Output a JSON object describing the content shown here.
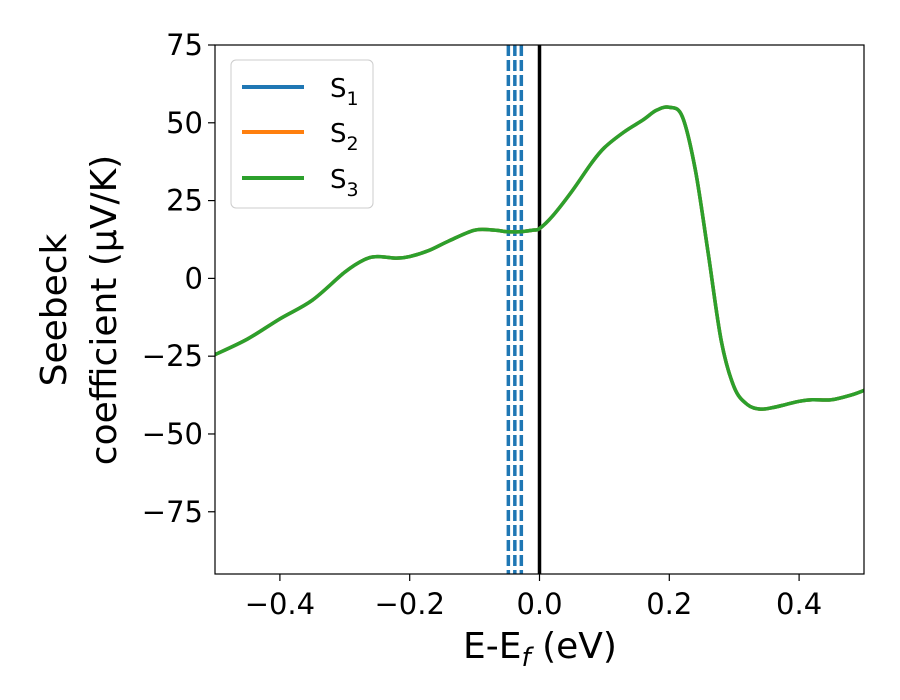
{
  "chart_data": {
    "type": "line",
    "title": "",
    "xlabel": {
      "main": "E-E",
      "sub": "f",
      "suffix": " (eV)"
    },
    "ylabel": {
      "line1": "Seebeck",
      "line2": "coefficient  (μV/K)"
    },
    "xlim": [
      -0.5,
      0.5
    ],
    "ylim": [
      -95,
      75
    ],
    "xticks": [
      -0.4,
      -0.2,
      0.0,
      0.2,
      0.4
    ],
    "xtick_labels": [
      "−0.4",
      "−0.2",
      "0.0",
      "0.2",
      "0.4"
    ],
    "yticks": [
      75,
      50,
      25,
      0,
      -25,
      -50,
      -75
    ],
    "ytick_labels": [
      "75",
      "50",
      "25",
      "0",
      "−25",
      "−50",
      "−75"
    ],
    "grid": false,
    "legend": {
      "position": "top-left",
      "entries": [
        {
          "main": "S",
          "sub": "1",
          "color": "#1f77b4"
        },
        {
          "main": "S",
          "sub": "2",
          "color": "#ff7f0e"
        },
        {
          "main": "S",
          "sub": "3",
          "color": "#2ca02c"
        }
      ]
    },
    "series": [
      {
        "name": "S1",
        "color": "#1f77b4"
      },
      {
        "name": "S2",
        "color": "#ff7f0e"
      },
      {
        "name": "S3",
        "color": "#2ca02c"
      }
    ],
    "x": [
      -0.5,
      -0.45,
      -0.4,
      -0.35,
      -0.3,
      -0.27,
      -0.25,
      -0.22,
      -0.2,
      -0.17,
      -0.14,
      -0.1,
      -0.07,
      -0.05,
      -0.03,
      -0.01,
      0.0,
      0.02,
      0.05,
      0.08,
      0.1,
      0.13,
      0.16,
      0.18,
      0.2,
      0.22,
      0.24,
      0.26,
      0.28,
      0.3,
      0.32,
      0.34,
      0.36,
      0.38,
      0.4,
      0.42,
      0.45,
      0.48,
      0.5
    ],
    "values": [
      -24.5,
      -19.5,
      -13,
      -7,
      2,
      6,
      7,
      6.5,
      7,
      9,
      12,
      15.5,
      15.5,
      15,
      15,
      15.5,
      16,
      20,
      28,
      37,
      42,
      47,
      51,
      54,
      55,
      52,
      35,
      8,
      -20,
      -35,
      -40.5,
      -42,
      -41.5,
      -40.5,
      -39.5,
      -39,
      -39,
      -37.5,
      -36
    ],
    "vlines_dashed": {
      "x": [
        -0.048,
        -0.038,
        -0.028
      ],
      "color": "#1f77b4"
    },
    "vline_solid": {
      "x": 0.0,
      "color": "#000000"
    }
  }
}
